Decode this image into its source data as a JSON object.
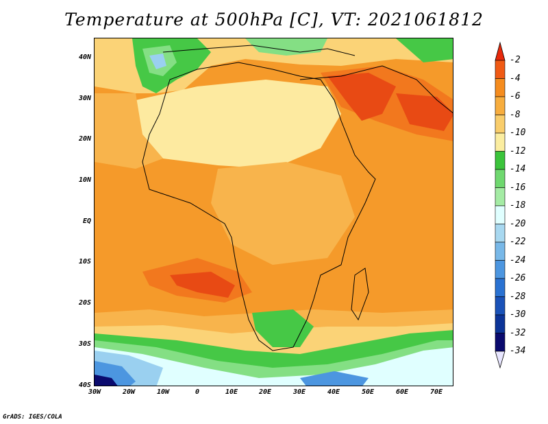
{
  "title": "Temperature at 500hPa [C], VT: 2021061812",
  "credit": "GrADS: IGES/COLA",
  "lat_labels": [
    "40N",
    "30N",
    "20N",
    "10N",
    "EQ",
    "10S",
    "20S",
    "30S",
    "40S"
  ],
  "lon_labels": [
    "30W",
    "20W",
    "10W",
    "0",
    "10E",
    "20E",
    "30E",
    "40E",
    "50E",
    "60E",
    "70E"
  ],
  "colorbar": {
    "labels": [
      "-2",
      "-4",
      "-6",
      "-8",
      "-10",
      "-12",
      "-14",
      "-16",
      "-18",
      "-20",
      "-22",
      "-24",
      "-26",
      "-28",
      "-30",
      "-32",
      "-34"
    ],
    "colors": [
      "#e8290b",
      "#f05a14",
      "#f58c1e",
      "#f7ad3e",
      "#f9cd6b",
      "#fbeda0",
      "#3bc43b",
      "#6fd86f",
      "#a4eba4",
      "#e0ffff",
      "#a8d8f0",
      "#78b8e8",
      "#4c96e0",
      "#2a72d2",
      "#1a52b8",
      "#0c3498",
      "#0a0a6e"
    ]
  },
  "map_colors": {
    "hot": "#e84a14",
    "warm": "#f2781e",
    "orange": "#f59a2a",
    "lightorange": "#f8b44c",
    "yellow": "#fbd377",
    "paleyellow": "#fdeaa0",
    "green": "#46c846",
    "lightgreen": "#84df84",
    "palegreen": "#c4f2c4",
    "cyan": "#e0ffff",
    "lightblue": "#9ad0f0",
    "blue": "#4c96e0",
    "darkblue": "#1a52b8",
    "navy": "#0a0a6e"
  }
}
